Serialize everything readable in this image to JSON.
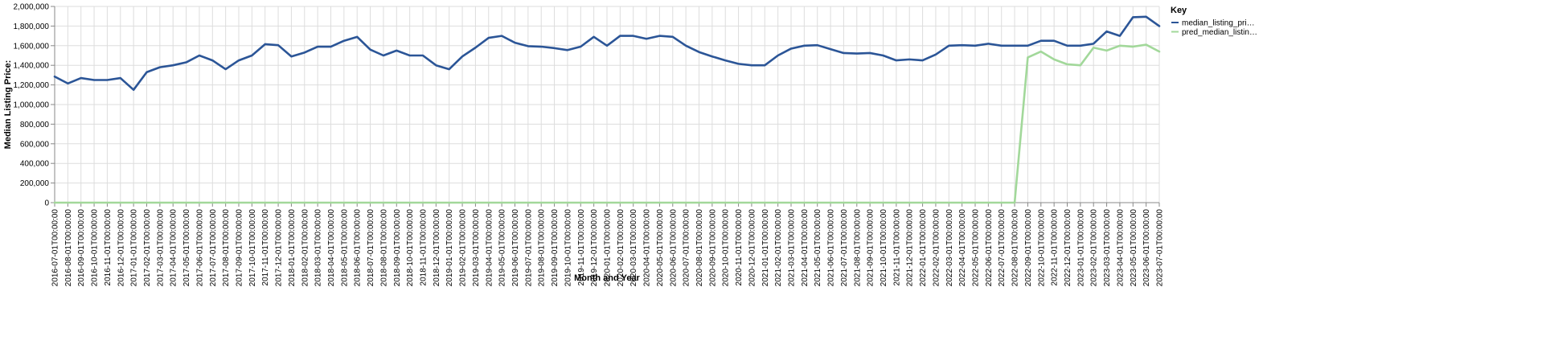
{
  "chart_data": {
    "type": "line",
    "xlabel": "Month and Year",
    "ylabel": "Median Listing Price:",
    "ylim": [
      0,
      2000000
    ],
    "yticks": [
      "0",
      "200,000",
      "400,000",
      "600,000",
      "800,000",
      "1,000,000",
      "1,200,000",
      "1,400,000",
      "1,600,000",
      "1,800,000",
      "2,000,000"
    ],
    "grid": true,
    "legend": {
      "title": "Key",
      "position": "right"
    },
    "x": [
      "2016-07-01T00:00:00",
      "2016-08-01T00:00:00",
      "2016-09-01T00:00:00",
      "2016-10-01T00:00:00",
      "2016-11-01T00:00:00",
      "2016-12-01T00:00:00",
      "2017-01-01T00:00:00",
      "2017-02-01T00:00:00",
      "2017-03-01T00:00:00",
      "2017-04-01T00:00:00",
      "2017-05-01T00:00:00",
      "2017-06-01T00:00:00",
      "2017-07-01T00:00:00",
      "2017-08-01T00:00:00",
      "2017-09-01T00:00:00",
      "2017-10-01T00:00:00",
      "2017-11-01T00:00:00",
      "2017-12-01T00:00:00",
      "2018-01-01T00:00:00",
      "2018-02-01T00:00:00",
      "2018-03-01T00:00:00",
      "2018-04-01T00:00:00",
      "2018-05-01T00:00:00",
      "2018-06-01T00:00:00",
      "2018-07-01T00:00:00",
      "2018-08-01T00:00:00",
      "2018-09-01T00:00:00",
      "2018-10-01T00:00:00",
      "2018-11-01T00:00:00",
      "2018-12-01T00:00:00",
      "2019-01-01T00:00:00",
      "2019-02-01T00:00:00",
      "2019-03-01T00:00:00",
      "2019-04-01T00:00:00",
      "2019-05-01T00:00:00",
      "2019-06-01T00:00:00",
      "2019-07-01T00:00:00",
      "2019-08-01T00:00:00",
      "2019-09-01T00:00:00",
      "2019-10-01T00:00:00",
      "2019-11-01T00:00:00",
      "2019-12-01T00:00:00",
      "2020-01-01T00:00:00",
      "2020-02-01T00:00:00",
      "2020-03-01T00:00:00",
      "2020-04-01T00:00:00",
      "2020-05-01T00:00:00",
      "2020-06-01T00:00:00",
      "2020-07-01T00:00:00",
      "2020-08-01T00:00:00",
      "2020-09-01T00:00:00",
      "2020-10-01T00:00:00",
      "2020-11-01T00:00:00",
      "2020-12-01T00:00:00",
      "2021-01-01T00:00:00",
      "2021-02-01T00:00:00",
      "2021-03-01T00:00:00",
      "2021-04-01T00:00:00",
      "2021-05-01T00:00:00",
      "2021-06-01T00:00:00",
      "2021-07-01T00:00:00",
      "2021-08-01T00:00:00",
      "2021-09-01T00:00:00",
      "2021-10-01T00:00:00",
      "2021-11-01T00:00:00",
      "2021-12-01T00:00:00",
      "2022-01-01T00:00:00",
      "2022-02-01T00:00:00",
      "2022-03-01T00:00:00",
      "2022-04-01T00:00:00",
      "2022-05-01T00:00:00",
      "2022-06-01T00:00:00",
      "2022-07-01T00:00:00",
      "2022-08-01T00:00:00",
      "2022-09-01T00:00:00",
      "2022-10-01T00:00:00",
      "2022-11-01T00:00:00",
      "2022-12-01T00:00:00",
      "2023-01-01T00:00:00",
      "2023-02-01T00:00:00",
      "2023-03-01T00:00:00",
      "2023-04-01T00:00:00",
      "2023-05-01T00:00:00",
      "2023-06-01T00:00:00",
      "2023-07-01T00:00:00"
    ],
    "series": [
      {
        "name": "median_listing_pri…",
        "color": "#2b5597",
        "values": [
          1285000,
          1215000,
          1270000,
          1250000,
          1250000,
          1270000,
          1150000,
          1330000,
          1380000,
          1400000,
          1430000,
          1500000,
          1450000,
          1360000,
          1450000,
          1500000,
          1615000,
          1605000,
          1490000,
          1530000,
          1590000,
          1590000,
          1650000,
          1690000,
          1560000,
          1500000,
          1550000,
          1500000,
          1500000,
          1400000,
          1360000,
          1490000,
          1580000,
          1680000,
          1700000,
          1630000,
          1595000,
          1590000,
          1575000,
          1555000,
          1590000,
          1690000,
          1600000,
          1700000,
          1700000,
          1670000,
          1700000,
          1690000,
          1600000,
          1535000,
          1490000,
          1450000,
          1415000,
          1400000,
          1400000,
          1500000,
          1570000,
          1600000,
          1605000,
          1565000,
          1525000,
          1520000,
          1525000,
          1500000,
          1450000,
          1460000,
          1450000,
          1510000,
          1600000,
          1605000,
          1600000,
          1620000,
          1600000,
          1600000,
          1600000,
          1650000,
          1650000,
          1600000,
          1600000,
          1620000,
          1745000,
          1700000,
          1890000,
          1895000,
          1800000
        ]
      },
      {
        "name": "pred_median_listin…",
        "color": "#a2d89a",
        "values": [
          0,
          0,
          0,
          0,
          0,
          0,
          0,
          0,
          0,
          0,
          0,
          0,
          0,
          0,
          0,
          0,
          0,
          0,
          0,
          0,
          0,
          0,
          0,
          0,
          0,
          0,
          0,
          0,
          0,
          0,
          0,
          0,
          0,
          0,
          0,
          0,
          0,
          0,
          0,
          0,
          0,
          0,
          0,
          0,
          0,
          0,
          0,
          0,
          0,
          0,
          0,
          0,
          0,
          0,
          0,
          0,
          0,
          0,
          0,
          0,
          0,
          0,
          0,
          0,
          0,
          0,
          0,
          0,
          0,
          0,
          0,
          0,
          0,
          0,
          1480000,
          1540000,
          1460000,
          1410000,
          1400000,
          1580000,
          1550000,
          1600000,
          1590000,
          1610000,
          1540000
        ]
      }
    ]
  }
}
